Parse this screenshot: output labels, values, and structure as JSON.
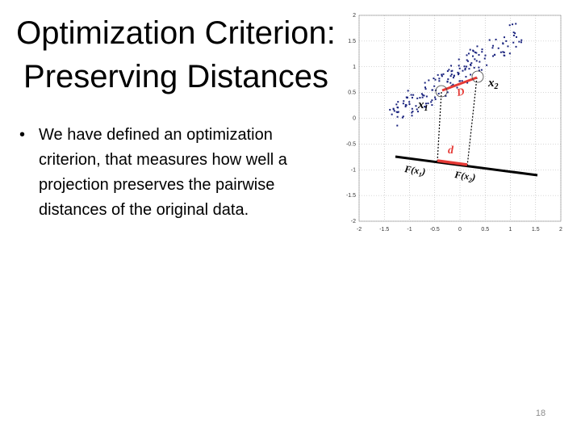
{
  "slide": {
    "title_line1": "Optimization Criterion:",
    "title_line2": "Preserving Distances",
    "bullets": [
      "We have defined an optimization criterion, that measures how well a projection preserves the pairwise distances of the original data."
    ],
    "bullet_symbol": "•",
    "page_number": "18"
  },
  "figure": {
    "x_ticks": [
      "-2",
      "-1.5",
      "-1",
      "-0.5",
      "0",
      "0.5",
      "1",
      "1.5",
      "2"
    ],
    "y_ticks": [
      "2",
      "1.5",
      "1",
      "0.5",
      "0",
      "-0.5",
      "-1",
      "-1.5",
      "-2"
    ],
    "label_x1_main": "x",
    "label_x1_sub": "1",
    "label_x2_main": "x",
    "label_x2_sub": "2",
    "label_D": "D",
    "label_d": "d",
    "label_Fx1": "F(x",
    "label_Fx1_sub": "1",
    "label_Fx1_close": ")",
    "label_Fx2": "F(x",
    "label_Fx2_sub": "2",
    "label_Fx2_close": ")",
    "colors": {
      "points": "#1a237e",
      "highlight": "#e53935",
      "grid": "#b0b0b0",
      "axis_line": "#000000"
    }
  }
}
